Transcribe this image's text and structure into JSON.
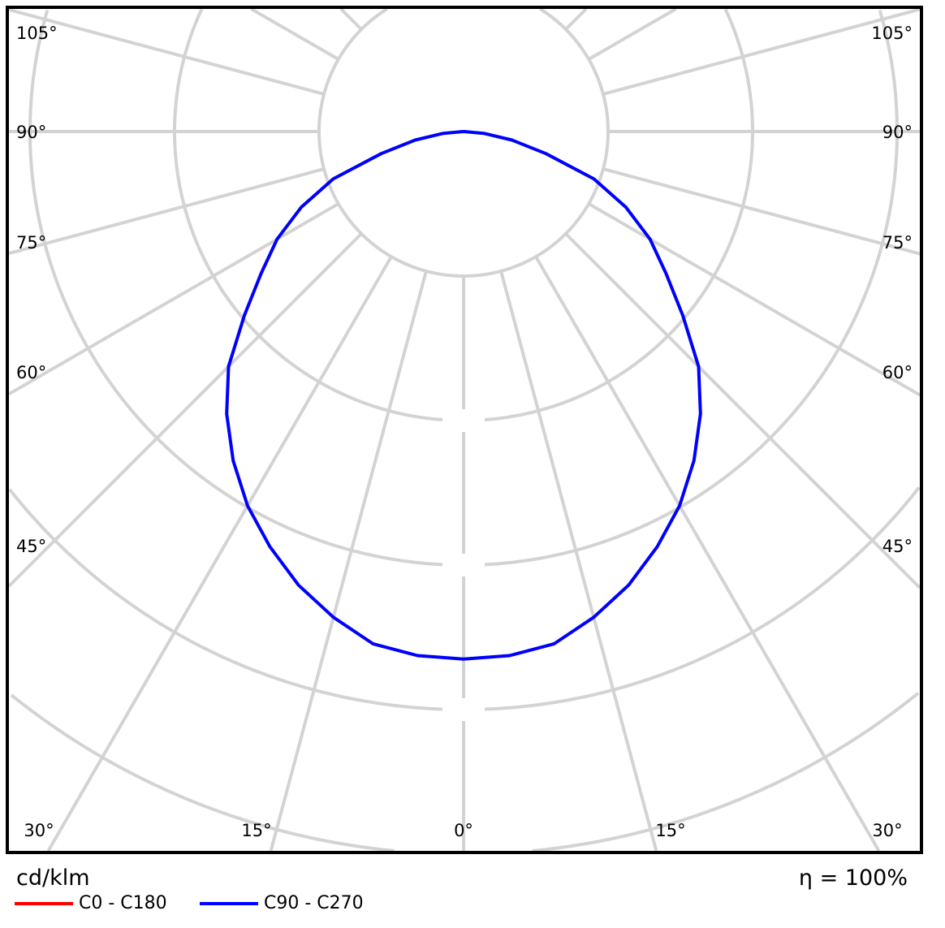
{
  "chart_data": {
    "type": "polar",
    "unit": "cd/klm",
    "efficiency": "η = 100%",
    "angle_labels_left": [
      "105°",
      "90°",
      "75°",
      "60°",
      "45°"
    ],
    "angle_labels_bottom": [
      "30°",
      "15°",
      "0°",
      "15°",
      "30°"
    ],
    "angle_labels_right": [
      "105°",
      "90°",
      "75°",
      "60°",
      "45°"
    ],
    "angle_label_values_left": [
      105,
      90,
      75,
      60,
      45
    ],
    "angle_label_values_bottom": [
      -30,
      -15,
      0,
      15,
      30
    ],
    "radial_grid_step_deg": 15,
    "grid": true,
    "legend_placement": "bottom-left",
    "angles_deg": [
      0,
      5,
      10,
      15,
      20,
      25,
      30,
      35,
      40,
      45,
      50,
      55,
      60,
      65,
      70,
      75,
      80,
      85,
      90
    ],
    "series": [
      {
        "name": "C0 - C180",
        "color": "#ff0000",
        "values": [
          3.65,
          3.64,
          3.6,
          3.48,
          3.34,
          3.17,
          2.99,
          2.78,
          2.55,
          2.3,
          1.98,
          1.71,
          1.49,
          1.24,
          0.96,
          0.59,
          0.34,
          0.14,
          0
        ]
      },
      {
        "name": "C90 - C270",
        "color": "#0000ff",
        "values": [
          3.65,
          3.64,
          3.6,
          3.48,
          3.34,
          3.17,
          2.99,
          2.78,
          2.55,
          2.3,
          1.98,
          1.71,
          1.49,
          1.24,
          0.96,
          0.59,
          0.34,
          0.14,
          0
        ]
      }
    ]
  }
}
